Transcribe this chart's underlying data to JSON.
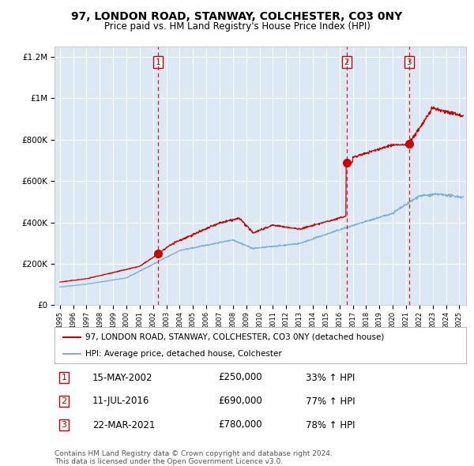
{
  "title": "97, LONDON ROAD, STANWAY, COLCHESTER, CO3 0NY",
  "subtitle": "Price paid vs. HM Land Registry's House Price Index (HPI)",
  "background_color": "#ffffff",
  "plot_bg_color": "#dce9f5",
  "grid_color": "#ffffff",
  "red_line_color": "#cc0000",
  "blue_line_color": "#7bafd4",
  "legend_label_red": "97, LONDON ROAD, STANWAY, COLCHESTER, CO3 0NY (detached house)",
  "legend_label_blue": "HPI: Average price, detached house, Colchester",
  "transactions": [
    {
      "num": 1,
      "date": "15-MAY-2002",
      "price": 250000,
      "price_str": "£250,000",
      "pct": "33%",
      "year": 2002.37
    },
    {
      "num": 2,
      "date": "11-JUL-2016",
      "price": 690000,
      "price_str": "£690,000",
      "pct": "77%",
      "year": 2016.53
    },
    {
      "num": 3,
      "date": "22-MAR-2021",
      "price": 780000,
      "price_str": "£780,000",
      "pct": "78%",
      "year": 2021.22
    }
  ],
  "footnote1": "Contains HM Land Registry data © Crown copyright and database right 2024.",
  "footnote2": "This data is licensed under the Open Government Licence v3.0.",
  "ylim": [
    0,
    1250000
  ],
  "xlim_start": 1994.6,
  "xlim_end": 2025.5,
  "yticks": [
    0,
    200000,
    400000,
    600000,
    800000,
    1000000,
    1200000
  ],
  "ytick_labels": [
    "£0",
    "£200K",
    "£400K",
    "£600K",
    "£800K",
    "£1M",
    "£1.2M"
  ]
}
